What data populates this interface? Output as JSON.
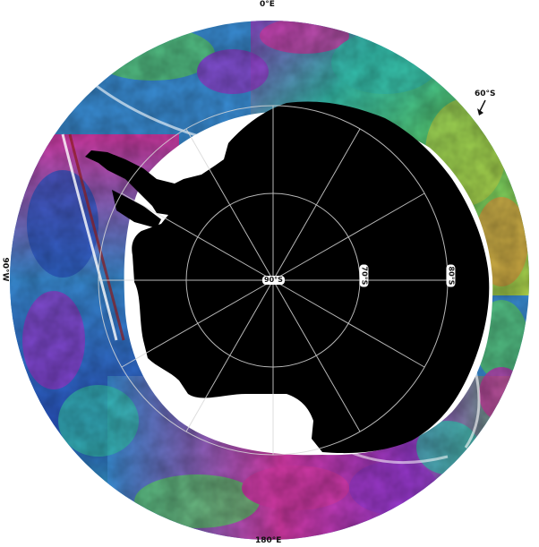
{
  "map": {
    "labels": {
      "top": "0°E",
      "right_top": "60°S",
      "left": "90°W",
      "bottom": "180°E",
      "center": "90°S",
      "lat_inner": "70°S",
      "lat_outer": "80°S"
    },
    "colors": {
      "land": "#000000",
      "graticule": "#d8d8d8",
      "ocean_ramp": [
        "#2b57c8",
        "#3a8fd8",
        "#36c2b0",
        "#5cd06a",
        "#b8d84a",
        "#e0a040",
        "#d83aa8",
        "#9a3ad0"
      ]
    }
  }
}
